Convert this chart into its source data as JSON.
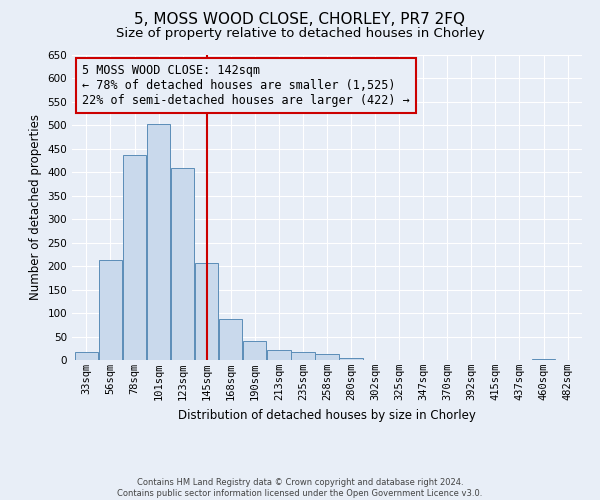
{
  "title": "5, MOSS WOOD CLOSE, CHORLEY, PR7 2FQ",
  "subtitle": "Size of property relative to detached houses in Chorley",
  "xlabel": "Distribution of detached houses by size in Chorley",
  "ylabel": "Number of detached properties",
  "footer_line1": "Contains HM Land Registry data © Crown copyright and database right 2024.",
  "footer_line2": "Contains public sector information licensed under the Open Government Licence v3.0.",
  "bin_labels": [
    "33sqm",
    "56sqm",
    "78sqm",
    "101sqm",
    "123sqm",
    "145sqm",
    "168sqm",
    "190sqm",
    "213sqm",
    "235sqm",
    "258sqm",
    "280sqm",
    "302sqm",
    "325sqm",
    "347sqm",
    "370sqm",
    "392sqm",
    "415sqm",
    "437sqm",
    "460sqm",
    "482sqm"
  ],
  "bar_values": [
    18,
    213,
    437,
    503,
    410,
    207,
    88,
    40,
    22,
    18,
    12,
    5,
    0,
    0,
    0,
    0,
    0,
    0,
    0,
    3,
    0
  ],
  "ylim": [
    0,
    650
  ],
  "yticks": [
    0,
    50,
    100,
    150,
    200,
    250,
    300,
    350,
    400,
    450,
    500,
    550,
    600,
    650
  ],
  "bar_color": "#c9d9ec",
  "bar_edge_color": "#5b8db8",
  "bar_edge_width": 0.7,
  "vline_color": "#cc0000",
  "annotation_title": "5 MOSS WOOD CLOSE: 142sqm",
  "annotation_line1": "← 78% of detached houses are smaller (1,525)",
  "annotation_line2": "22% of semi-detached houses are larger (422) →",
  "annotation_box_color": "#cc0000",
  "background_color": "#e8eef7",
  "grid_color": "#ffffff",
  "title_fontsize": 11,
  "subtitle_fontsize": 9.5,
  "axis_label_fontsize": 8.5,
  "tick_fontsize": 7.5,
  "annotation_fontsize": 8.5,
  "footer_fontsize": 6
}
